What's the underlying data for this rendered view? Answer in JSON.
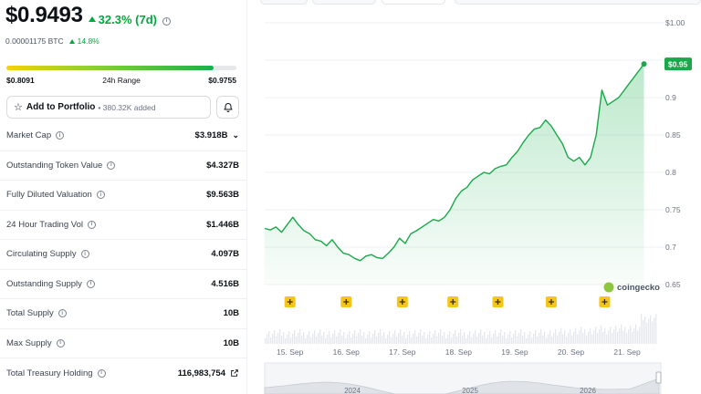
{
  "price": {
    "value": "$0.9493",
    "change_7d": "32.3% (7d)",
    "btc_value": "0.00001175 BTC",
    "btc_change": "14.8%"
  },
  "range_24h": {
    "low": "$0.8091",
    "label": "24h Range",
    "high": "$0.9755",
    "fill_fraction": 0.9
  },
  "portfolio": {
    "button_label": "Add to Portfolio",
    "added_text": "• 380.32K added"
  },
  "stats": [
    {
      "label": "Market Cap",
      "value": "$3.918B",
      "expandable": true
    },
    {
      "label": "Outstanding Token Value",
      "value": "$4.327B"
    },
    {
      "label": "Fully Diluted Valuation",
      "value": "$9.563B"
    },
    {
      "label": "24 Hour Trading Vol",
      "value": "$1.446B"
    },
    {
      "label": "Circulating Supply",
      "value": "4.097B"
    },
    {
      "label": "Outstanding Supply",
      "value": "4.516B"
    },
    {
      "label": "Total Supply",
      "value": "10B"
    },
    {
      "label": "Max Supply",
      "value": "10B"
    },
    {
      "label": "Total Treasury Holding",
      "value": "116,983,754",
      "external_link": true
    }
  ],
  "colors": {
    "accent_green": "#00a83e",
    "line_green": "#1aa84a",
    "marker_yellow": "#f5c518"
  },
  "chart_data": {
    "type": "area",
    "x_tick_labels": [
      "15. Sep",
      "16. Sep",
      "17. Sep",
      "18. Sep",
      "19. Sep",
      "20. Sep",
      "21. Sep"
    ],
    "y_tick_labels": [
      "$1.00",
      "0.95",
      "0.9",
      "0.85",
      "0.8",
      "0.75",
      "0.7",
      "0.65"
    ],
    "ylim": [
      0.65,
      1.0
    ],
    "current_price_label": "$0.95",
    "watermark": "coingecko",
    "navigator_years": [
      "2024",
      "2025",
      "2026"
    ],
    "series": [
      {
        "x": [
          0.0,
          0.1,
          0.2,
          0.3,
          0.4,
          0.5,
          0.6,
          0.7,
          0.8,
          0.9,
          1.0,
          1.1,
          1.2,
          1.3,
          1.4,
          1.5,
          1.6,
          1.7,
          1.8,
          1.9,
          2.0,
          2.1,
          2.2,
          2.3,
          2.4,
          2.5,
          2.6,
          2.7,
          2.8,
          2.9,
          3.0,
          3.1,
          3.2,
          3.3,
          3.4,
          3.5,
          3.6,
          3.7,
          3.8,
          3.9,
          4.0,
          4.1,
          4.2,
          4.3,
          4.4,
          4.5,
          4.6,
          4.7,
          4.8,
          4.9,
          5.0,
          5.1,
          5.2,
          5.3,
          5.4,
          5.5,
          5.6,
          5.7,
          5.8,
          5.9,
          6.0,
          6.1,
          6.2,
          6.3,
          6.4,
          6.5,
          6.6,
          6.7,
          6.75
        ],
        "values": [
          0.725,
          0.723,
          0.727,
          0.72,
          0.73,
          0.74,
          0.73,
          0.722,
          0.718,
          0.71,
          0.708,
          0.702,
          0.71,
          0.7,
          0.692,
          0.69,
          0.685,
          0.682,
          0.688,
          0.69,
          0.686,
          0.685,
          0.692,
          0.7,
          0.712,
          0.705,
          0.718,
          0.722,
          0.727,
          0.732,
          0.737,
          0.735,
          0.74,
          0.75,
          0.765,
          0.775,
          0.78,
          0.79,
          0.795,
          0.8,
          0.798,
          0.805,
          0.808,
          0.81,
          0.82,
          0.828,
          0.84,
          0.85,
          0.858,
          0.86,
          0.87,
          0.862,
          0.85,
          0.838,
          0.82,
          0.815,
          0.82,
          0.81,
          0.82,
          0.85,
          0.91,
          0.89,
          0.895,
          0.9,
          0.91,
          0.92,
          0.93,
          0.94,
          0.945
        ]
      }
    ],
    "event_markers_x": [
      0.45,
      1.45,
      2.45,
      3.35,
      4.15,
      5.1,
      6.05
    ]
  }
}
